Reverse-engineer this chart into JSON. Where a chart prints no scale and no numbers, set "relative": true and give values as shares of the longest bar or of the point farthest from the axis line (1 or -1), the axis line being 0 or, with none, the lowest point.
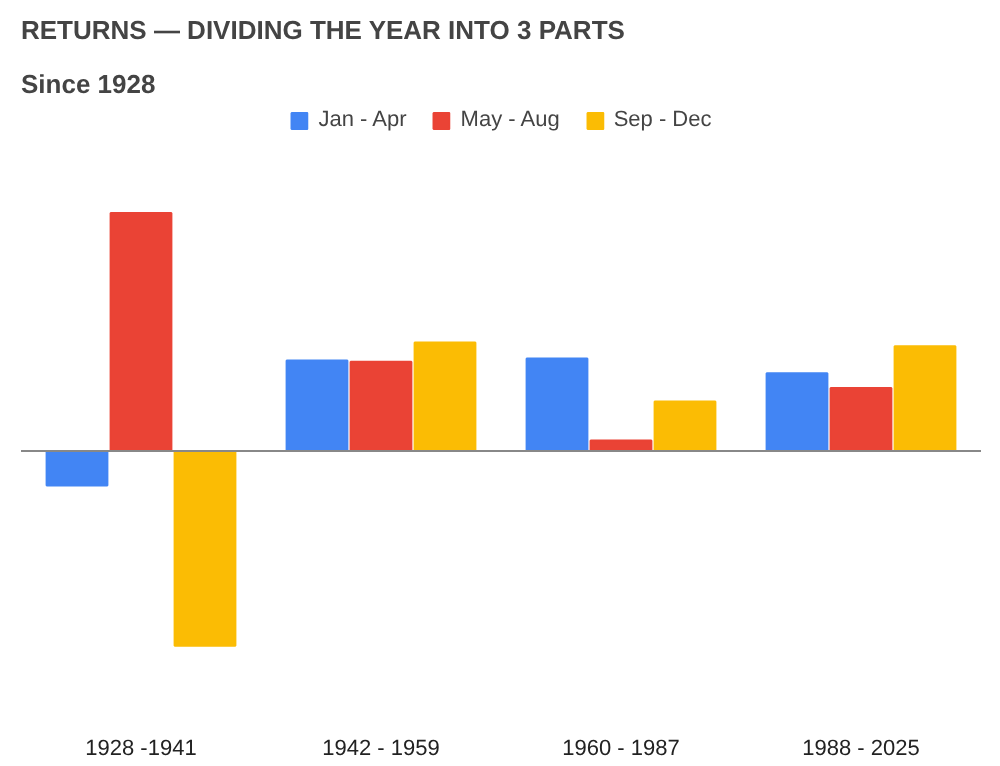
{
  "chart_data": {
    "type": "bar",
    "title": "RETURNS — DIVIDING THE YEAR INTO 3 PARTS",
    "subtitle": "Since 1928",
    "relative": true,
    "legend": "top",
    "categories": [
      "1928 -1941",
      "1942 - 1959",
      "1960 - 1987",
      "1988 - 2025"
    ],
    "series": [
      {
        "name": "Jan - Apr",
        "color": "#4285f4",
        "values": [
          -0.144,
          0.38,
          0.389,
          0.327
        ]
      },
      {
        "name": "May - Aug",
        "color": "#ea4335",
        "values": [
          1,
          0.375,
          0.045,
          0.265
        ]
      },
      {
        "name": "Sep - Dec",
        "color": "#fbbc04",
        "values": [
          -0.817,
          0.456,
          0.208,
          0.44
        ]
      }
    ]
  }
}
